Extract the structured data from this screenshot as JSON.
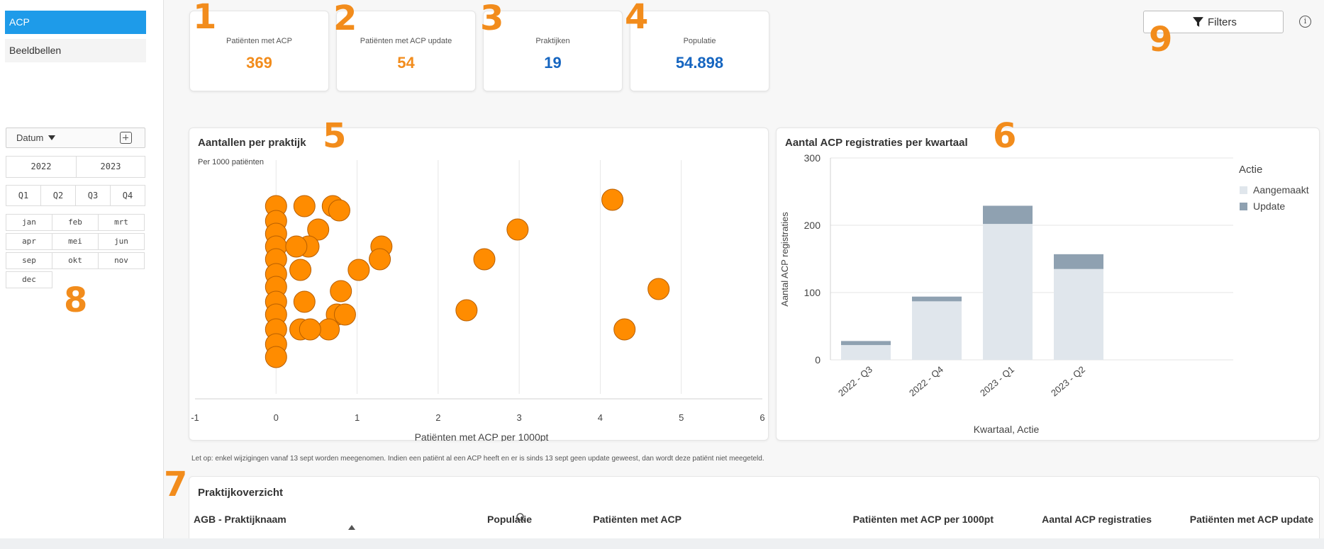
{
  "sidebar": {
    "nav": [
      {
        "label": "ACP",
        "active": true
      },
      {
        "label": "Beeldbellen",
        "active": false
      }
    ],
    "date_filter": {
      "label": "Datum",
      "years": [
        "2022",
        "2023"
      ],
      "quarters": [
        "Q1",
        "Q2",
        "Q3",
        "Q4"
      ],
      "months": [
        "jan",
        "feb",
        "mrt",
        "apr",
        "mei",
        "jun",
        "sep",
        "okt",
        "nov",
        "dec"
      ]
    }
  },
  "kpis": [
    {
      "label": "Patiënten met ACP",
      "value": "369",
      "color": "#f28c1c"
    },
    {
      "label": "Patiënten met ACP update",
      "value": "54",
      "color": "#f28c1c"
    },
    {
      "label": "Praktijken",
      "value": "19",
      "color": "#1565c0"
    },
    {
      "label": "Populatie",
      "value": "54.898",
      "color": "#1565c0"
    }
  ],
  "annotations": [
    "1",
    "2",
    "3",
    "4",
    "5",
    "6",
    "7",
    "8",
    "9"
  ],
  "toolbar": {
    "filters_label": "Filters"
  },
  "scatter": {
    "title": "Aantallen per praktijk",
    "subtitle": "Per 1000 patiënten"
  },
  "bars": {
    "title": "Aantal ACP registraties per kwartaal"
  },
  "chart_data": [
    {
      "type": "scatter",
      "title": "Aantallen per praktijk",
      "subtitle": "Per 1000 patiënten",
      "xlabel": "Patiënten met ACP per 1000pt",
      "ylabel": "",
      "xlim": [
        -1,
        6
      ],
      "xticks": [
        -1,
        0,
        1,
        2,
        3,
        4,
        5,
        6
      ],
      "grid": true,
      "color": "#ff8c00",
      "points": [
        {
          "x": 0.0,
          "y": 0.85
        },
        {
          "x": 0.0,
          "y": 0.78
        },
        {
          "x": 0.0,
          "y": 0.72
        },
        {
          "x": 0.0,
          "y": 0.66
        },
        {
          "x": 0.0,
          "y": 0.6
        },
        {
          "x": 0.0,
          "y": 0.53
        },
        {
          "x": 0.0,
          "y": 0.47
        },
        {
          "x": 0.0,
          "y": 0.4
        },
        {
          "x": 0.0,
          "y": 0.34
        },
        {
          "x": 0.0,
          "y": 0.27
        },
        {
          "x": 0.0,
          "y": 0.2
        },
        {
          "x": 0.0,
          "y": 0.14
        },
        {
          "x": 0.35,
          "y": 0.85
        },
        {
          "x": 0.7,
          "y": 0.85
        },
        {
          "x": 0.52,
          "y": 0.74
        },
        {
          "x": 0.4,
          "y": 0.66
        },
        {
          "x": 0.25,
          "y": 0.66
        },
        {
          "x": 0.3,
          "y": 0.55
        },
        {
          "x": 0.35,
          "y": 0.4
        },
        {
          "x": 0.8,
          "y": 0.45
        },
        {
          "x": 0.75,
          "y": 0.34
        },
        {
          "x": 0.85,
          "y": 0.34
        },
        {
          "x": 0.65,
          "y": 0.27
        },
        {
          "x": 0.3,
          "y": 0.27
        },
        {
          "x": 0.42,
          "y": 0.27
        },
        {
          "x": 1.02,
          "y": 0.55
        },
        {
          "x": 1.3,
          "y": 0.66
        },
        {
          "x": 1.28,
          "y": 0.6
        },
        {
          "x": 0.78,
          "y": 0.83
        },
        {
          "x": 2.35,
          "y": 0.36
        },
        {
          "x": 2.57,
          "y": 0.6
        },
        {
          "x": 2.98,
          "y": 0.74
        },
        {
          "x": 4.15,
          "y": 0.88
        },
        {
          "x": 4.3,
          "y": 0.27
        },
        {
          "x": 4.72,
          "y": 0.46
        }
      ]
    },
    {
      "type": "bar",
      "stacked": true,
      "title": "Aantal ACP registraties per kwartaal",
      "categories": [
        "2022 - Q3",
        "2022 - Q4",
        "2023 - Q1",
        "2023 - Q2"
      ],
      "series": [
        {
          "name": "Aangemaakt",
          "values": [
            22,
            87,
            202,
            135
          ],
          "color": "#e0e6ec"
        },
        {
          "name": "Update",
          "values": [
            6,
            7,
            27,
            22
          ],
          "color": "#8fa1b1"
        }
      ],
      "xlabel": "Kwartaal, Actie",
      "ylabel": "Aantal ACP registraties",
      "ylim": [
        0,
        300
      ],
      "yticks": [
        0,
        100,
        200,
        300
      ],
      "legend_title": "Actie",
      "legend_position": "right",
      "grid": true
    }
  ],
  "note": "Let op: enkel wijzigingen vanaf 13 sept worden meegenomen. Indien een patiënt al een ACP heeft en er is sinds 13 sept geen update geweest, dan wordt deze patiënt niet meegeteld.",
  "table": {
    "title": "Praktijkoverzicht",
    "columns": [
      "AGB - Praktijknaam",
      "Populatie",
      "Patiënten met ACP",
      "Patiënten met ACP per 1000pt",
      "Aantal ACP registraties",
      "Patiënten met ACP update"
    ]
  }
}
